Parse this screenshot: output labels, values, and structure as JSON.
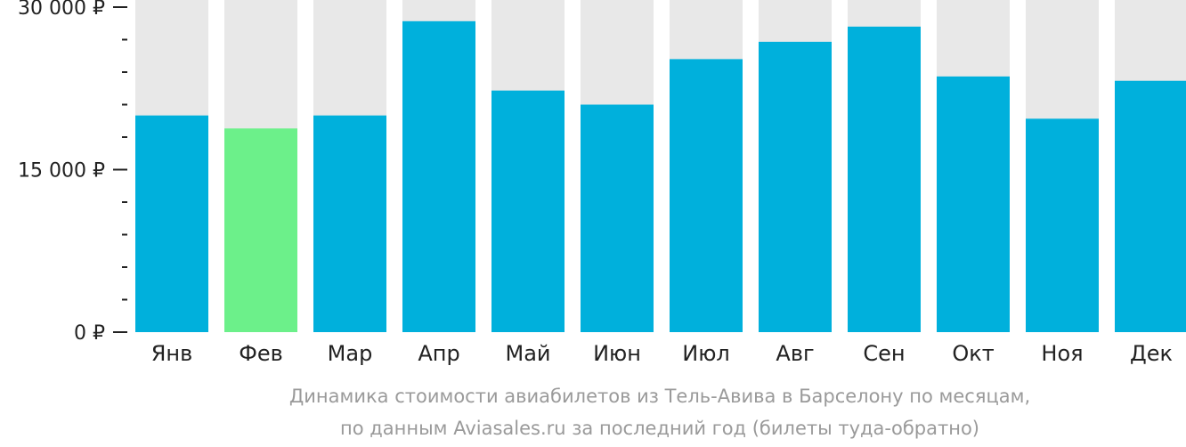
{
  "chart_data": {
    "type": "bar",
    "categories": [
      "Янв",
      "Фев",
      "Мар",
      "Апр",
      "Май",
      "Июн",
      "Июл",
      "Авг",
      "Сен",
      "Окт",
      "Ноя",
      "Дек"
    ],
    "values": [
      20000,
      18800,
      20000,
      28700,
      22300,
      21000,
      25200,
      26800,
      28200,
      23600,
      19700,
      23200
    ],
    "highlight_index": 1,
    "ylim": [
      0,
      30000
    ],
    "y_ticks": [
      {
        "value": 0,
        "label": "0 ₽"
      },
      {
        "value": 15000,
        "label": "15 000 ₽"
      },
      {
        "value": 30000,
        "label": "30 000 ₽"
      }
    ],
    "y_minor_step": 3000,
    "title": "",
    "caption": [
      "Динамика стоимости авиабилетов из Тель-Авива в Барселону по месяцам,",
      "по данным Aviasales.ru за последний год (билеты туда-обратно)"
    ],
    "colors": {
      "bar": "#00b0dc",
      "highlight": "#6cf08a",
      "background_bar": "#e8e8e8",
      "axis": "#222222",
      "caption": "#9a9a9a"
    }
  }
}
